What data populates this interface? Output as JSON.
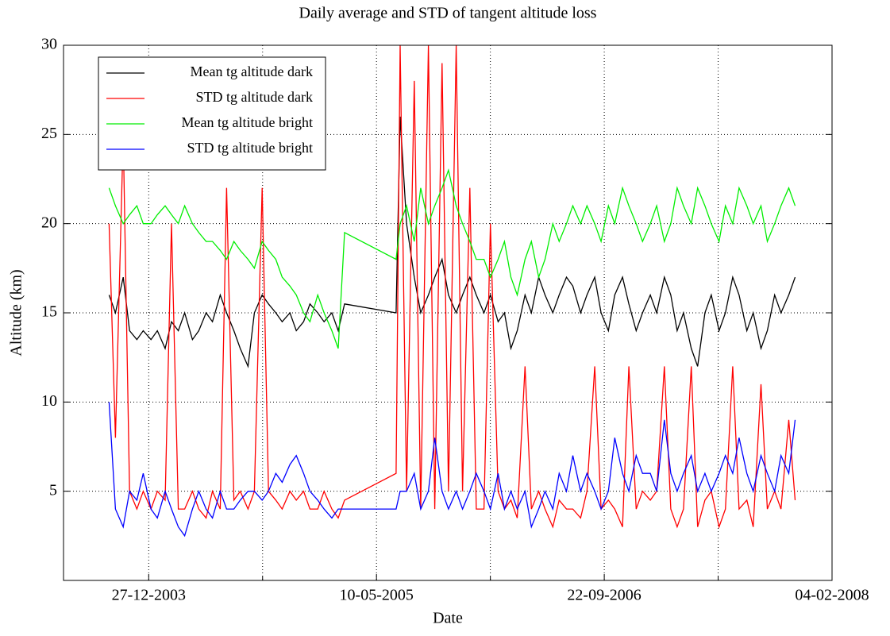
{
  "chart_data": {
    "type": "line",
    "title": "Daily average and STD of tangent altitude loss",
    "xlabel": "Date",
    "ylabel": "Altitude (km)",
    "xlim": [
      "23-06-2003",
      "04-02-2008"
    ],
    "xticks": [
      "27-12-2003",
      "10-05-2005",
      "22-09-2006",
      "04-02-2008"
    ],
    "ylim": [
      0,
      30
    ],
    "yticks": [
      5,
      10,
      15,
      20,
      25,
      30
    ],
    "grid": true,
    "legend": "upper left",
    "x": [
      "01-10-2003",
      "15-10-2003",
      "01-11-2003",
      "15-11-2003",
      "01-12-2003",
      "15-12-2003",
      "01-01-2004",
      "15-01-2004",
      "01-02-2004",
      "15-02-2004",
      "01-03-2004",
      "15-03-2004",
      "01-04-2004",
      "15-04-2004",
      "01-05-2004",
      "15-05-2004",
      "01-06-2004",
      "15-06-2004",
      "01-07-2004",
      "15-07-2004",
      "01-08-2004",
      "15-08-2004",
      "01-09-2004",
      "15-09-2004",
      "01-10-2004",
      "15-10-2004",
      "01-11-2004",
      "15-11-2004",
      "01-12-2004",
      "15-12-2004",
      "01-01-2005",
      "15-01-2005",
      "01-02-2005",
      "15-02-2005",
      "01-03-2005",
      "22-06-2005",
      "01-07-2005",
      "15-07-2005",
      "01-08-2005",
      "15-08-2005",
      "01-09-2005",
      "15-09-2005",
      "01-10-2005",
      "15-10-2005",
      "01-11-2005",
      "15-11-2005",
      "01-12-2005",
      "15-12-2005",
      "01-01-2006",
      "15-01-2006",
      "01-02-2006",
      "15-02-2006",
      "01-03-2006",
      "15-03-2006",
      "01-04-2006",
      "15-04-2006",
      "01-05-2006",
      "15-05-2006",
      "01-06-2006",
      "15-06-2006",
      "01-07-2006",
      "15-07-2006",
      "01-08-2006",
      "15-08-2006",
      "01-09-2006",
      "15-09-2006",
      "01-10-2006",
      "15-10-2006",
      "01-11-2006",
      "15-11-2006",
      "01-12-2006",
      "15-12-2006",
      "01-01-2007",
      "15-01-2007",
      "01-02-2007",
      "15-02-2007",
      "01-03-2007",
      "15-03-2007",
      "01-04-2007",
      "15-04-2007",
      "01-05-2007",
      "15-05-2007",
      "01-06-2007",
      "15-06-2007",
      "01-07-2007",
      "15-07-2007",
      "01-08-2007",
      "15-08-2007",
      "01-09-2007",
      "15-09-2007",
      "01-10-2007",
      "15-10-2007",
      "01-11-2007",
      "15-11-2007"
    ],
    "series": [
      {
        "name": "Mean tg altitude dark",
        "color": "#000000",
        "values": [
          16,
          15,
          17,
          14,
          13.5,
          14,
          13.5,
          14,
          13,
          14.5,
          14,
          15,
          13.5,
          14,
          15,
          14.5,
          16,
          15,
          14,
          13,
          12,
          15,
          16,
          15.5,
          15,
          14.5,
          15,
          14,
          14.5,
          15.5,
          15,
          14.5,
          15,
          14,
          15.5,
          15,
          26,
          20,
          17,
          15,
          16,
          17,
          18,
          16,
          15,
          16,
          17,
          16,
          15,
          16,
          14.5,
          15,
          13,
          14,
          16,
          15,
          17,
          16,
          15,
          16,
          17,
          16.5,
          15,
          16,
          17,
          15,
          14,
          16,
          17,
          15.5,
          14,
          15,
          16,
          15,
          17,
          16,
          14,
          15,
          13,
          12,
          15,
          16,
          14,
          15,
          17,
          16,
          14,
          15,
          13,
          14,
          16,
          15,
          16,
          17
        ]
      },
      {
        "name": "STD tg altitude dark",
        "color": "#ff0000",
        "values": [
          20,
          8,
          25,
          5,
          4,
          5,
          4,
          5,
          4.5,
          20,
          4,
          4,
          5,
          4,
          3.5,
          5,
          4,
          22,
          4.5,
          5,
          4,
          5,
          22,
          5,
          4.5,
          4,
          5,
          4.5,
          5,
          4,
          4,
          5,
          4,
          3.5,
          4.5,
          6,
          30,
          5,
          28,
          4,
          30,
          4,
          29,
          5,
          30,
          5,
          22,
          4,
          4,
          20,
          5,
          4,
          4.5,
          3.5,
          12,
          4,
          5,
          4,
          3,
          4.5,
          4,
          4,
          3.5,
          5,
          12,
          4,
          4.5,
          4,
          3,
          12,
          4,
          5,
          4.5,
          5,
          12,
          4,
          3,
          4,
          12,
          3,
          4.5,
          5,
          3,
          4,
          12,
          4,
          4.5,
          3,
          11,
          4,
          5,
          4,
          9,
          4.5
        ]
      },
      {
        "name": "Mean tg altitude bright",
        "color": "#00ee00",
        "values": [
          22,
          21,
          20,
          20.5,
          21,
          20,
          20,
          20.5,
          21,
          20.5,
          20,
          21,
          20,
          19.5,
          19,
          19,
          18.5,
          18,
          19,
          18.5,
          18,
          17.5,
          19,
          18.5,
          18,
          17,
          16.5,
          16,
          15,
          14.5,
          16,
          15,
          14,
          13,
          19.5,
          18,
          20,
          21,
          19,
          22,
          20,
          21,
          22,
          23,
          21,
          20,
          19,
          18,
          18,
          17,
          18,
          19,
          17,
          16,
          18,
          19,
          17,
          18,
          20,
          19,
          20,
          21,
          20,
          21,
          20,
          19,
          21,
          20,
          22,
          21,
          20,
          19,
          20,
          21,
          19,
          20,
          22,
          21,
          20,
          22,
          21,
          20,
          19,
          21,
          20,
          22,
          21,
          20,
          21,
          19,
          20,
          21,
          22,
          21
        ]
      },
      {
        "name": "STD tg altitude bright",
        "color": "#0000ff",
        "values": [
          10,
          4,
          3,
          5,
          4.5,
          6,
          4,
          3.5,
          5,
          4,
          3,
          2.5,
          4,
          5,
          4,
          3.5,
          5,
          4,
          4,
          4.5,
          5,
          5,
          4.5,
          5,
          6,
          5.5,
          6.5,
          7,
          6,
          5,
          4.5,
          4,
          3.5,
          4,
          4,
          4,
          5,
          5,
          6,
          4,
          5,
          8,
          5,
          4,
          5,
          4,
          5,
          6,
          5,
          4,
          6,
          4,
          5,
          4,
          5,
          3,
          4,
          5,
          4,
          6,
          5,
          7,
          5,
          6,
          5,
          4,
          5,
          8,
          6,
          5,
          7,
          6,
          6,
          5,
          9,
          6,
          5,
          6,
          7,
          5,
          6,
          5,
          6,
          7,
          6,
          8,
          6,
          5,
          7,
          6,
          5,
          7,
          6,
          9
        ]
      }
    ]
  }
}
